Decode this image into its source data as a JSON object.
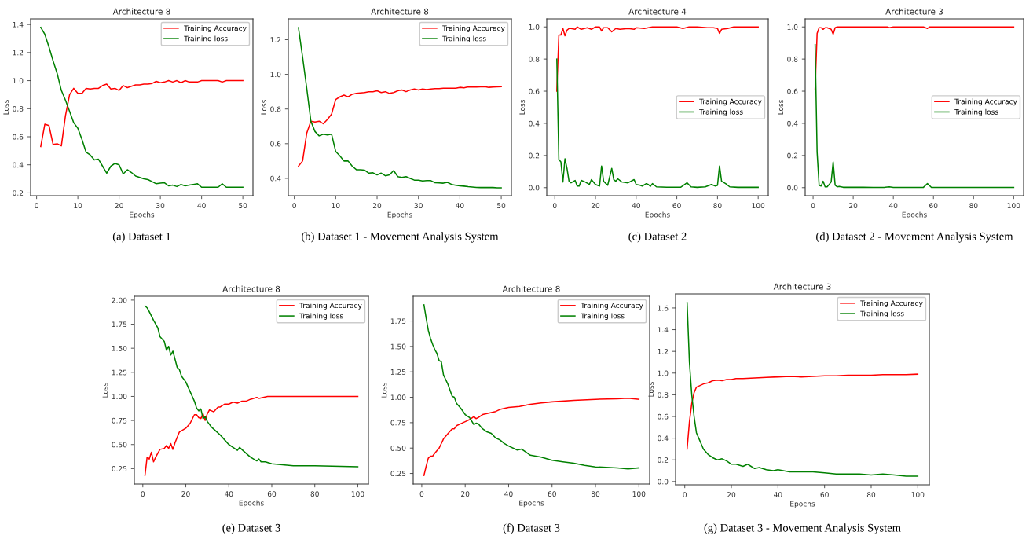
{
  "chart_data": [
    {
      "type": "line",
      "title": "Architecture 8",
      "xlabel": "Epochs",
      "ylabel": "Loss",
      "legend": "top right",
      "annotations": [
        "(a) Dataset 1"
      ],
      "xlim": [
        -1.45,
        52.45
      ],
      "xticks": [
        0,
        10,
        20,
        30,
        40,
        50
      ],
      "ylim": [
        0.18,
        1.44
      ],
      "yticks": [
        0.2,
        0.4,
        0.6,
        0.8,
        {
          "value": 1.0,
          "label": "1.0"
        },
        1.2,
        1.4
      ],
      "series": [
        {
          "name": "Training Accuracy",
          "color": "#ff0000",
          "x": [
            1,
            2,
            3,
            4,
            5,
            6,
            7,
            8,
            9,
            10,
            11,
            12,
            13,
            14,
            15,
            16,
            17,
            18,
            19,
            20,
            21,
            22,
            23,
            24,
            25,
            26,
            27,
            28,
            29,
            30,
            31,
            32,
            33,
            34,
            35,
            36,
            37,
            38,
            39,
            40,
            41,
            42,
            43,
            44,
            45,
            46,
            47,
            48,
            49,
            50
          ],
          "values": [
            0.53,
            0.69,
            0.68,
            0.545,
            0.55,
            0.535,
            0.75,
            0.9,
            0.945,
            0.91,
            0.91,
            0.945,
            0.94,
            0.945,
            0.945,
            0.965,
            0.975,
            0.94,
            0.945,
            0.93,
            0.965,
            0.95,
            0.96,
            0.97,
            0.97,
            0.975,
            0.975,
            0.98,
            0.995,
            0.985,
            0.99,
            1.0,
            0.99,
            1.0,
            0.985,
            1.0,
            0.99,
            0.99,
            0.99,
            1.0,
            1.0,
            1.0,
            1.0,
            1.0,
            0.99,
            1.0,
            1.0,
            1.0,
            1.0,
            1.0
          ]
        },
        {
          "name": "Training loss",
          "color": "#008000",
          "x": [
            1,
            2,
            3,
            4,
            5,
            6,
            7,
            8,
            9,
            10,
            11,
            12,
            13,
            14,
            15,
            16,
            17,
            18,
            19,
            20,
            21,
            22,
            23,
            24,
            25,
            26,
            27,
            28,
            29,
            30,
            31,
            32,
            33,
            34,
            35,
            36,
            37,
            38,
            39,
            40,
            41,
            42,
            43,
            44,
            45,
            46,
            47,
            48,
            49,
            50
          ],
          "values": [
            1.38,
            1.33,
            1.24,
            1.14,
            1.05,
            0.93,
            0.86,
            0.78,
            0.7,
            0.66,
            0.58,
            0.49,
            0.47,
            0.435,
            0.44,
            0.39,
            0.34,
            0.39,
            0.41,
            0.4,
            0.335,
            0.365,
            0.345,
            0.32,
            0.31,
            0.3,
            0.295,
            0.28,
            0.265,
            0.27,
            0.272,
            0.25,
            0.255,
            0.245,
            0.26,
            0.25,
            0.255,
            0.26,
            0.265,
            0.24,
            0.24,
            0.24,
            0.24,
            0.24,
            0.265,
            0.24,
            0.24,
            0.24,
            0.24,
            0.24
          ]
        }
      ]
    },
    {
      "type": "line",
      "title": "Architecture 8",
      "xlabel": "Epochs",
      "ylabel": "Loss",
      "legend": "top right",
      "annotations": [
        "(b) Dataset 1 - Movement Analysis System"
      ],
      "xlim": [
        -1.45,
        52.45
      ],
      "xticks": [
        0,
        10,
        20,
        30,
        40,
        50
      ],
      "ylim": [
        0.3,
        1.32
      ],
      "yticks": [
        0.4,
        0.6,
        0.8,
        {
          "value": 1.0,
          "label": "1.0"
        },
        1.2
      ],
      "series": [
        {
          "name": "Training Accuracy",
          "color": "#ff0000",
          "x": [
            1,
            2,
            3,
            4,
            5,
            6,
            7,
            8,
            9,
            10,
            11,
            12,
            13,
            14,
            15,
            16,
            17,
            18,
            19,
            20,
            21,
            22,
            23,
            24,
            25,
            26,
            27,
            28,
            29,
            30,
            31,
            32,
            33,
            34,
            35,
            36,
            37,
            38,
            39,
            40,
            41,
            42,
            43,
            44,
            45,
            46,
            47,
            48,
            49,
            50
          ],
          "values": [
            0.47,
            0.5,
            0.66,
            0.73,
            0.725,
            0.73,
            0.715,
            0.74,
            0.77,
            0.855,
            0.87,
            0.88,
            0.87,
            0.885,
            0.89,
            0.893,
            0.895,
            0.9,
            0.9,
            0.905,
            0.895,
            0.9,
            0.89,
            0.895,
            0.905,
            0.91,
            0.9,
            0.91,
            0.915,
            0.91,
            0.915,
            0.912,
            0.915,
            0.918,
            0.918,
            0.92,
            0.92,
            0.92,
            0.92,
            0.925,
            0.922,
            0.928,
            0.927,
            0.927,
            0.928,
            0.929,
            0.925,
            0.927,
            0.928,
            0.929
          ]
        },
        {
          "name": "Training loss",
          "color": "#008000",
          "x": [
            1,
            2,
            3,
            4,
            5,
            6,
            7,
            8,
            9,
            10,
            11,
            12,
            13,
            14,
            15,
            16,
            17,
            18,
            19,
            20,
            21,
            22,
            23,
            24,
            25,
            26,
            27,
            28,
            29,
            30,
            31,
            32,
            33,
            34,
            35,
            36,
            37,
            38,
            39,
            40,
            41,
            42,
            43,
            44,
            45,
            46,
            47,
            48,
            49,
            50
          ],
          "values": [
            1.27,
            1.1,
            0.92,
            0.73,
            0.67,
            0.645,
            0.655,
            0.65,
            0.655,
            0.555,
            0.53,
            0.5,
            0.5,
            0.47,
            0.45,
            0.45,
            0.447,
            0.43,
            0.432,
            0.42,
            0.43,
            0.415,
            0.42,
            0.445,
            0.41,
            0.405,
            0.41,
            0.4,
            0.39,
            0.39,
            0.385,
            0.387,
            0.387,
            0.375,
            0.374,
            0.372,
            0.377,
            0.365,
            0.36,
            0.357,
            0.355,
            0.352,
            0.35,
            0.348,
            0.347,
            0.347,
            0.348,
            0.347,
            0.345,
            0.345
          ]
        }
      ]
    },
    {
      "type": "line",
      "title": "Architecture 4",
      "xlabel": "Epochs",
      "ylabel": "Loss",
      "legend": "right",
      "annotations": [
        "(c) Dataset 2"
      ],
      "xlim": [
        -3.95,
        104.95
      ],
      "xticks": [
        0,
        20,
        40,
        60,
        80,
        100
      ],
      "ylim": [
        -0.05,
        1.05
      ],
      "yticks": [
        {
          "value": 0.0,
          "label": "0.0"
        },
        0.2,
        0.4,
        0.6,
        0.8,
        {
          "value": 1.0,
          "label": "1.0"
        }
      ],
      "series": [
        {
          "name": "Training Accuracy",
          "color": "#ff0000",
          "x": [
            1,
            2,
            3,
            4,
            5,
            6,
            7,
            8,
            10,
            11,
            13,
            16,
            18,
            20,
            22,
            23,
            24,
            26,
            28,
            30,
            32,
            36,
            39,
            40,
            44,
            48,
            50,
            60,
            63,
            66,
            70,
            75,
            78,
            80,
            81,
            82,
            85,
            88,
            100
          ],
          "values": [
            0.6,
            0.95,
            0.95,
            0.99,
            0.945,
            0.98,
            0.99,
            0.99,
            0.985,
            1.0,
            0.985,
            0.995,
            0.985,
            1.0,
            1.0,
            0.975,
            0.995,
            0.995,
            0.97,
            0.99,
            0.985,
            0.99,
            0.985,
            0.995,
            0.99,
            1.0,
            1.0,
            1.0,
            0.99,
            1.0,
            1.0,
            0.995,
            0.995,
            0.99,
            0.96,
            0.985,
            0.99,
            1.0,
            1.0
          ]
        },
        {
          "name": "Training loss",
          "color": "#008000",
          "x": [
            1,
            2,
            3,
            4,
            5,
            6,
            7,
            8,
            10,
            11,
            12,
            13,
            15,
            17,
            18,
            20,
            22,
            23,
            24,
            26,
            28,
            29,
            30,
            31,
            33,
            36,
            39,
            40,
            42,
            43,
            45,
            46,
            47,
            48,
            50,
            55,
            62,
            65,
            67,
            70,
            74,
            77,
            79,
            80,
            81,
            82,
            84,
            86,
            90,
            100
          ],
          "values": [
            0.8,
            0.175,
            0.16,
            0.035,
            0.18,
            0.12,
            0.04,
            0.03,
            0.045,
            0.01,
            0.01,
            0.045,
            0.035,
            0.02,
            0.05,
            0.02,
            0.01,
            0.135,
            0.04,
            0.015,
            0.12,
            0.05,
            0.04,
            0.055,
            0.035,
            0.03,
            0.05,
            0.02,
            0.015,
            0.01,
            0.025,
            0.02,
            0.008,
            0.025,
            0.005,
            0.003,
            0.003,
            0.03,
            0.005,
            0.002,
            0.005,
            0.02,
            0.01,
            0.015,
            0.135,
            0.04,
            0.025,
            0.005,
            0.002,
            0.002
          ]
        }
      ]
    },
    {
      "type": "line",
      "title": "Architecture 3",
      "xlabel": "Epochs",
      "ylabel": "Loss",
      "legend": "right",
      "annotations": [
        "(d) Dataset 2 - Movement Analysis System"
      ],
      "xlim": [
        -3.95,
        104.95
      ],
      "xticks": [
        0,
        20,
        40,
        60,
        80,
        100
      ],
      "ylim": [
        -0.05,
        1.05
      ],
      "yticks": [
        {
          "value": 0.0,
          "label": "0.0"
        },
        0.2,
        0.4,
        0.6,
        0.8,
        {
          "value": 1.0,
          "label": "1.0"
        }
      ],
      "series": [
        {
          "name": "Training Accuracy",
          "color": "#ff0000",
          "x": [
            1,
            2,
            3,
            4,
            5,
            6,
            7,
            8,
            9,
            10,
            11,
            12,
            15,
            37,
            38,
            40,
            55,
            57,
            58,
            100
          ],
          "values": [
            0.61,
            0.96,
            0.995,
            0.995,
            0.985,
            0.995,
            0.995,
            0.99,
            0.985,
            0.955,
            0.995,
            1.0,
            1.0,
            1.0,
            0.995,
            1.0,
            1.0,
            0.99,
            1.0,
            1.0
          ]
        },
        {
          "name": "Training loss",
          "color": "#008000",
          "x": [
            1,
            2,
            3,
            4,
            5,
            6,
            7,
            9,
            10,
            11,
            12,
            13,
            15,
            25,
            30,
            36,
            38,
            40,
            55,
            57,
            59,
            100
          ],
          "values": [
            0.89,
            0.22,
            0.015,
            0.01,
            0.04,
            0.005,
            0.005,
            0.035,
            0.16,
            0.015,
            0.005,
            0.008,
            0.002,
            0.002,
            0.001,
            0.002,
            0.005,
            0.001,
            0.002,
            0.025,
            0.001,
            0.001
          ]
        }
      ]
    },
    {
      "type": "line",
      "title": "Architecture 8",
      "xlabel": "Epochs",
      "ylabel": "Loss",
      "legend": "top right",
      "annotations": [
        "(e) Dataset 3"
      ],
      "xlim": [
        -3.95,
        104.95
      ],
      "xticks": [
        0,
        20,
        40,
        60,
        80,
        100
      ],
      "ylim": [
        0.09,
        2.04
      ],
      "yticks": [
        {
          "value": 0.25,
          "label": "0.25"
        },
        {
          "value": 0.5,
          "label": "0.50"
        },
        {
          "value": 0.75,
          "label": "0.75"
        },
        {
          "value": 1.0,
          "label": "1.00"
        },
        {
          "value": 1.25,
          "label": "1.25"
        },
        {
          "value": 1.5,
          "label": "1.50"
        },
        {
          "value": 1.75,
          "label": "1.75"
        },
        {
          "value": 2.0,
          "label": "2.00"
        }
      ],
      "series": [
        {
          "name": "Training Accuracy",
          "color": "#ff0000",
          "x": [
            1,
            2,
            3,
            4,
            5,
            6,
            8,
            10,
            11,
            12,
            13,
            14,
            15,
            17,
            20,
            22,
            24,
            25,
            26,
            27,
            28,
            29,
            30,
            31,
            33,
            35,
            36,
            38,
            40,
            42,
            44,
            46,
            48,
            50,
            53,
            54,
            56,
            58,
            60,
            70,
            80,
            100
          ],
          "values": [
            0.18,
            0.37,
            0.35,
            0.42,
            0.32,
            0.37,
            0.45,
            0.46,
            0.49,
            0.46,
            0.51,
            0.45,
            0.52,
            0.63,
            0.67,
            0.72,
            0.81,
            0.81,
            0.78,
            0.77,
            0.82,
            0.75,
            0.82,
            0.86,
            0.84,
            0.89,
            0.89,
            0.92,
            0.92,
            0.94,
            0.93,
            0.95,
            0.95,
            0.97,
            0.99,
            0.98,
            0.99,
            1.0,
            1.0,
            1.0,
            1.0,
            1.0
          ]
        },
        {
          "name": "Training loss",
          "color": "#008000",
          "x": [
            1,
            2,
            3,
            5,
            7,
            8,
            10,
            11,
            12,
            13,
            14,
            16,
            17,
            18,
            20,
            22,
            24,
            25,
            26,
            27,
            28,
            29,
            30,
            32,
            34,
            36,
            38,
            40,
            42,
            44,
            45,
            47,
            50,
            53,
            54,
            55,
            57,
            60,
            70,
            80,
            100
          ],
          "values": [
            1.94,
            1.92,
            1.88,
            1.79,
            1.71,
            1.62,
            1.57,
            1.48,
            1.52,
            1.43,
            1.47,
            1.3,
            1.28,
            1.21,
            1.15,
            1.05,
            0.95,
            0.88,
            0.85,
            0.87,
            0.77,
            0.79,
            0.74,
            0.68,
            0.64,
            0.6,
            0.55,
            0.5,
            0.47,
            0.44,
            0.47,
            0.43,
            0.37,
            0.33,
            0.35,
            0.32,
            0.32,
            0.3,
            0.28,
            0.28,
            0.27
          ]
        }
      ]
    },
    {
      "type": "line",
      "title": "Architecture 8",
      "xlabel": "Epochs",
      "ylabel": "Loss",
      "legend": "top right",
      "annotations": [
        "(f) Dataset 3"
      ],
      "xlim": [
        -3.95,
        104.95
      ],
      "xticks": [
        0,
        20,
        40,
        60,
        80,
        100
      ],
      "ylim": [
        0.146,
        1.994
      ],
      "yticks": [
        {
          "value": 0.25,
          "label": "0.25"
        },
        {
          "value": 0.5,
          "label": "0.50"
        },
        {
          "value": 0.75,
          "label": "0.75"
        },
        {
          "value": 1.0,
          "label": "1.00"
        },
        {
          "value": 1.25,
          "label": "1.25"
        },
        {
          "value": 1.5,
          "label": "1.50"
        },
        {
          "value": 1.75,
          "label": "1.75"
        }
      ],
      "series": [
        {
          "name": "Training Accuracy",
          "color": "#ff0000",
          "x": [
            1,
            2,
            3,
            4,
            5,
            6,
            8,
            10,
            12,
            14,
            15,
            16,
            18,
            20,
            22,
            24,
            25,
            26,
            28,
            30,
            34,
            36,
            40,
            45,
            50,
            55,
            60,
            70,
            80,
            90,
            95,
            100
          ],
          "values": [
            0.23,
            0.32,
            0.4,
            0.42,
            0.42,
            0.45,
            0.5,
            0.59,
            0.64,
            0.69,
            0.69,
            0.72,
            0.74,
            0.76,
            0.78,
            0.81,
            0.79,
            0.8,
            0.83,
            0.84,
            0.86,
            0.88,
            0.9,
            0.91,
            0.93,
            0.945,
            0.955,
            0.97,
            0.98,
            0.985,
            0.99,
            0.98
          ]
        },
        {
          "name": "Training loss",
          "color": "#008000",
          "x": [
            1,
            2,
            3,
            4,
            5,
            6,
            7,
            8,
            9,
            10,
            12,
            14,
            15,
            16,
            18,
            20,
            22,
            24,
            25,
            26,
            28,
            30,
            32,
            34,
            36,
            38,
            40,
            44,
            46,
            48,
            50,
            55,
            60,
            65,
            70,
            75,
            80,
            90,
            95,
            100
          ],
          "values": [
            1.91,
            1.78,
            1.66,
            1.58,
            1.52,
            1.47,
            1.43,
            1.36,
            1.35,
            1.22,
            1.13,
            1.01,
            1.0,
            0.94,
            0.89,
            0.83,
            0.8,
            0.73,
            0.745,
            0.74,
            0.69,
            0.66,
            0.645,
            0.6,
            0.58,
            0.545,
            0.52,
            0.48,
            0.49,
            0.46,
            0.43,
            0.41,
            0.38,
            0.365,
            0.35,
            0.33,
            0.315,
            0.305,
            0.295,
            0.305
          ]
        }
      ]
    },
    {
      "type": "line",
      "title": "Architecture 3",
      "xlabel": "Epochs",
      "ylabel": "Loss",
      "legend": "top right",
      "annotations": [
        "(g) Dataset 3 - Movement Analysis System"
      ],
      "xlim": [
        -3.95,
        104.95
      ],
      "xticks": [
        0,
        20,
        40,
        60,
        80,
        100
      ],
      "ylim": [
        -0.03,
        1.73
      ],
      "yticks": [
        {
          "value": 0.0,
          "label": "0.0"
        },
        0.2,
        0.4,
        0.6,
        0.8,
        {
          "value": 1.0,
          "label": "1.0"
        },
        1.2,
        1.4,
        1.6
      ],
      "series": [
        {
          "name": "Training Accuracy",
          "color": "#ff0000",
          "x": [
            1,
            2,
            3,
            4,
            5,
            6,
            8,
            10,
            12,
            14,
            16,
            18,
            20,
            22,
            25,
            30,
            35,
            40,
            45,
            50,
            55,
            60,
            65,
            70,
            80,
            85,
            90,
            95,
            100
          ],
          "values": [
            0.3,
            0.55,
            0.72,
            0.82,
            0.87,
            0.88,
            0.9,
            0.91,
            0.93,
            0.935,
            0.93,
            0.94,
            0.94,
            0.95,
            0.95,
            0.955,
            0.96,
            0.965,
            0.97,
            0.965,
            0.97,
            0.975,
            0.975,
            0.98,
            0.98,
            0.985,
            0.985,
            0.985,
            0.99
          ]
        },
        {
          "name": "Training loss",
          "color": "#008000",
          "x": [
            1,
            2,
            3,
            4,
            5,
            6,
            7,
            8,
            10,
            12,
            14,
            16,
            18,
            20,
            22,
            25,
            27,
            30,
            32,
            35,
            38,
            40,
            45,
            50,
            55,
            60,
            65,
            70,
            75,
            80,
            85,
            90,
            95,
            100
          ],
          "values": [
            1.65,
            1.1,
            0.8,
            0.6,
            0.45,
            0.4,
            0.35,
            0.3,
            0.25,
            0.22,
            0.2,
            0.21,
            0.19,
            0.16,
            0.16,
            0.14,
            0.16,
            0.12,
            0.13,
            0.11,
            0.1,
            0.11,
            0.09,
            0.09,
            0.09,
            0.08,
            0.07,
            0.07,
            0.07,
            0.06,
            0.07,
            0.06,
            0.05,
            0.05
          ]
        }
      ]
    }
  ]
}
